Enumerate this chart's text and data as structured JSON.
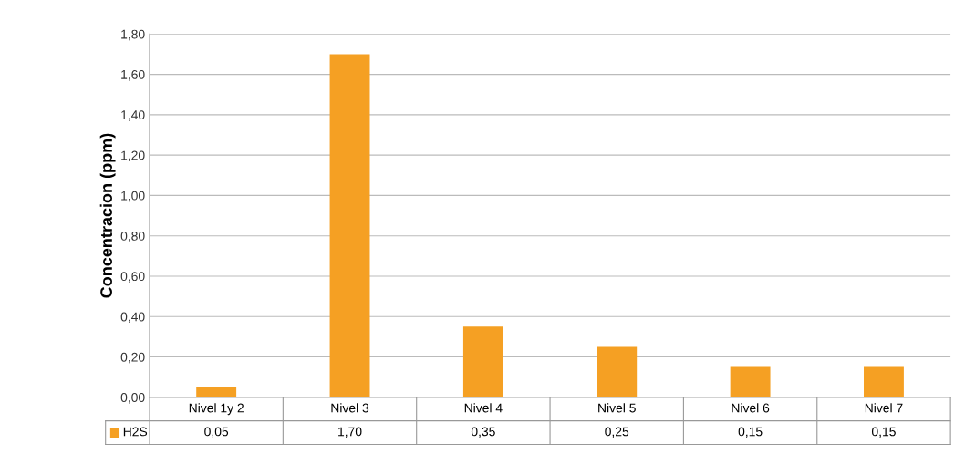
{
  "chart_data": {
    "type": "bar",
    "ylabel": "Concentracion (ppm)",
    "categories": [
      "Nivel 1y 2",
      "Nivel 3",
      "Nivel 4",
      "Nivel 5",
      "Nivel 6",
      "Nivel 7"
    ],
    "series": [
      {
        "name": "H2S",
        "color": "#f5a023",
        "values": [
          0.05,
          1.7,
          0.35,
          0.25,
          0.15,
          0.15
        ],
        "value_labels": [
          "0,05",
          "1,70",
          "0,35",
          "0,25",
          "0,15",
          "0,15"
        ]
      }
    ],
    "ylim": [
      0,
      1.8
    ],
    "yticks": [
      {
        "value": 0,
        "label": "0,00"
      },
      {
        "value": 0.2,
        "label": "0,20"
      },
      {
        "value": 0.4,
        "label": "0,40"
      },
      {
        "value": 0.6,
        "label": "0,60"
      },
      {
        "value": 0.8,
        "label": "0,80"
      },
      {
        "value": 1.0,
        "label": "1,00"
      },
      {
        "value": 1.2,
        "label": "1,20"
      },
      {
        "value": 1.4,
        "label": "1,40"
      },
      {
        "value": 1.6,
        "label": "1,60"
      },
      {
        "value": 1.8,
        "label": "1,80"
      }
    ],
    "grid": "y",
    "legend": "bottom left"
  }
}
